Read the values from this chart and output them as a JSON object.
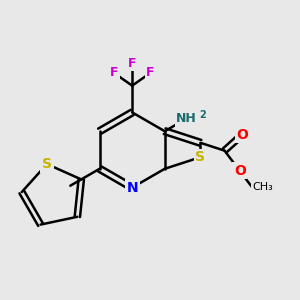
{
  "bg_color": "#e8e8e8",
  "bond_color": "#000000",
  "bond_width": 1.8,
  "atom_colors": {
    "S_main": "#c8b400",
    "S_thio": "#c8b400",
    "N": "#0000ff",
    "O": "#ff0000",
    "F": "#cc00cc",
    "NH2_N": "#1a6b6b",
    "NH2_H": "#1a6b6b",
    "C": "#000000"
  },
  "xlim": [
    0,
    10
  ],
  "ylim": [
    0,
    10
  ]
}
